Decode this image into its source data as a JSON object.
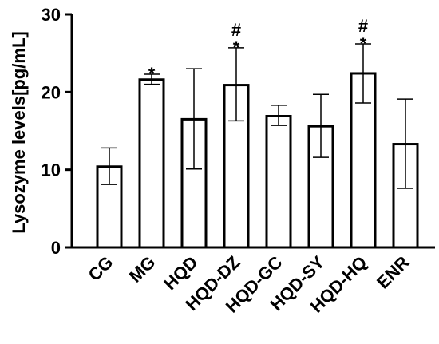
{
  "chart_data": {
    "type": "bar",
    "ylabel": "Lysozyme levels[pg/mL]",
    "ylim": [
      0,
      30
    ],
    "yticks": [
      0,
      10,
      20,
      30
    ],
    "categories": [
      "CG",
      "MG",
      "HQD",
      "HQD-DZ",
      "HQD-GC",
      "HQD-SY",
      "HQD-HQ",
      "ENR"
    ],
    "values": [
      10.4,
      21.6,
      16.5,
      20.9,
      16.9,
      15.6,
      22.4,
      13.3
    ],
    "error_upper": [
      12.8,
      22.3,
      23.0,
      25.7,
      18.3,
      19.7,
      26.2,
      19.1
    ],
    "error_lower": [
      8.1,
      21.0,
      10.1,
      16.3,
      15.7,
      11.6,
      18.6,
      7.6
    ],
    "annotations": [
      "",
      "*",
      "",
      "#\n*",
      "",
      "",
      "#\n*",
      ""
    ],
    "grid": false,
    "legend": "none",
    "bar_fill": "#ffffff",
    "bar_stroke": "#000000"
  }
}
